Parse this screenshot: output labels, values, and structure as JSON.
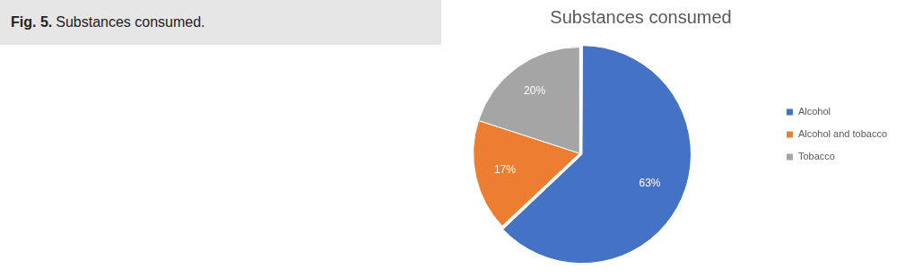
{
  "caption": {
    "label": "Fig. 5.",
    "text": "Substances consumed."
  },
  "chart_data": {
    "type": "pie",
    "title": "Substances consumed",
    "categories": [
      "Alcohol",
      "Alcohol and tobacco",
      "Tobacco"
    ],
    "values": [
      63,
      17,
      20
    ],
    "value_labels": [
      "63%",
      "17%",
      "20%"
    ],
    "colors": [
      "#4472c4",
      "#ed7d31",
      "#a5a5a5"
    ],
    "data_labels": true,
    "legend": "right"
  }
}
